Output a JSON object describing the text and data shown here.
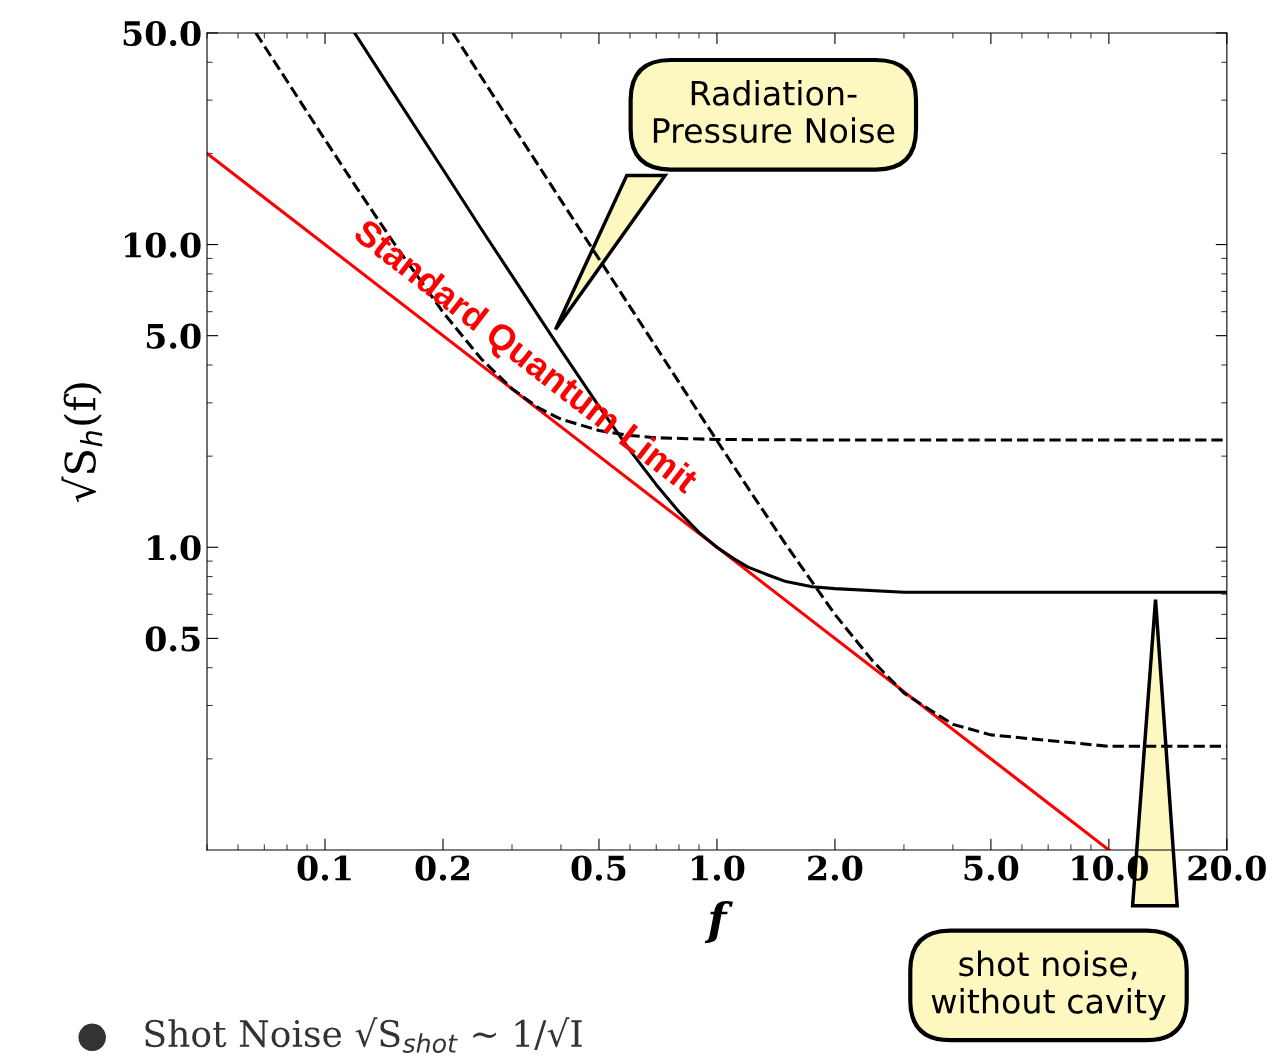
{
  "chart_data": {
    "type": "line",
    "xlabel": "f",
    "ylabel": "√S$_{h}$(f)",
    "log": "xy",
    "grid": false,
    "legend": false,
    "xlim": [
      0.05,
      20
    ],
    "ylim": [
      0.1,
      50
    ],
    "xticks": [
      {
        "value": 0.1,
        "label": "0.1"
      },
      {
        "value": 0.2,
        "label": "0.2"
      },
      {
        "value": 0.5,
        "label": "0.5"
      },
      {
        "value": 1,
        "label": "1.0"
      },
      {
        "value": 2,
        "label": "2.0"
      },
      {
        "value": 5,
        "label": "5.0"
      },
      {
        "value": 10,
        "label": "10.0"
      },
      {
        "value": 20,
        "label": "20.0"
      }
    ],
    "yticks": [
      {
        "value": 0.5,
        "label": "0.5"
      },
      {
        "value": 1,
        "label": "1.0"
      },
      {
        "value": 5,
        "label": "5.0"
      },
      {
        "value": 10,
        "label": "10.0"
      },
      {
        "value": 50,
        "label": "50.0"
      }
    ],
    "series": [
      {
        "name": "Standard Quantum Limit",
        "color": "#ff0000",
        "line_style": "solid",
        "x": [
          0.05,
          10
        ],
        "values": [
          20,
          0.1
        ]
      },
      {
        "color": "#000000",
        "line_style": "solid",
        "x": [
          0.119,
          0.15,
          0.2,
          0.25,
          0.3,
          0.35,
          0.4,
          0.5,
          0.6,
          0.7,
          0.8,
          0.9,
          1,
          1.1,
          1.2,
          1.35,
          1.5,
          1.75,
          2,
          3,
          5,
          10,
          20
        ],
        "values": [
          50,
          31.4,
          17.7,
          11.3,
          7.89,
          5.82,
          4.48,
          2.92,
          2.09,
          1.61,
          1.31,
          1.12,
          1.0,
          0.92,
          0.86,
          0.81,
          0.77,
          0.74,
          0.73,
          0.71,
          0.71,
          0.71,
          0.71
        ]
      },
      {
        "color": "#000000",
        "line_style": "dashed",
        "x": [
          0.0666,
          0.08,
          0.1,
          0.12,
          0.15,
          0.2,
          0.25,
          0.3,
          0.35,
          0.4,
          0.5,
          0.6,
          0.7,
          1,
          2,
          5,
          20
        ],
        "values": [
          50,
          34.7,
          22.2,
          15.5,
          10.1,
          5.98,
          4.2,
          3.34,
          2.89,
          2.65,
          2.43,
          2.34,
          2.3,
          2.27,
          2.26,
          2.26,
          2.26
        ]
      },
      {
        "color": "#000000",
        "line_style": "dashed",
        "x": [
          0.212,
          0.25,
          0.3,
          0.4,
          0.5,
          0.7,
          0.85,
          1,
          1.2,
          1.5,
          2,
          2.5,
          3,
          3.5,
          4,
          5,
          7,
          10,
          20
        ],
        "values": [
          50,
          35.9,
          24.9,
          14.0,
          8.97,
          4.58,
          3.11,
          2.25,
          1.57,
          1.02,
          0.6,
          0.42,
          0.33,
          0.29,
          0.26,
          0.24,
          0.23,
          0.22,
          0.22
        ]
      }
    ],
    "annotations": [
      "Radiation-\nPressure Noise",
      "shot noise,\nwithout cavity",
      "●   Shot Noise √S$_{shot}$ ~ 1/√I"
    ]
  }
}
